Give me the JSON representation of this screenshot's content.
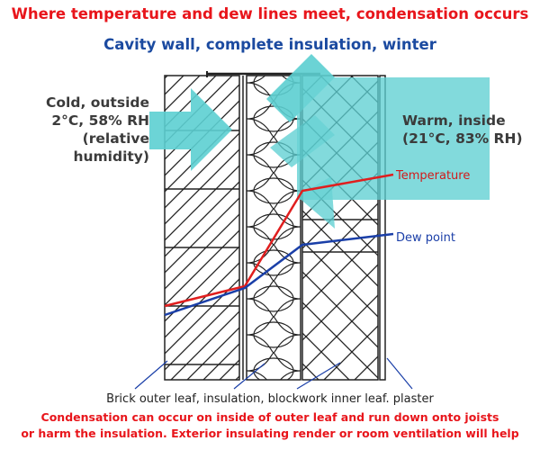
{
  "title": "Where temperature and dew lines meet, condensation occurs",
  "subtitle": "Cavity wall, complete insulation, winter",
  "outside_label": [
    "Cold, outside",
    "2°C, 58% RH",
    "(relative",
    "humidity)"
  ],
  "inside_label": [
    "Warm, inside",
    "(21°C, 83% RH)"
  ],
  "temperature_label": "Temperature",
  "dew_point_label": "Dew point",
  "layers_caption": "Brick outer leaf, insulation, blockwork inner leaf. plaster",
  "note_line1": "Condensation can occur on inside of outer leaf and run down onto joists",
  "note_line2": "or harm the insulation. Exterior insulating render or room ventilation will help",
  "colors": {
    "title": "#e8151b",
    "subtitle": "#1b4aa0",
    "airflow": "#5ccfd1",
    "temperature_line": "#e01e1e",
    "dew_point_line": "#1a3fa8",
    "note": "#e8151b"
  },
  "icons": [
    "airflow-arrow-icon"
  ]
}
